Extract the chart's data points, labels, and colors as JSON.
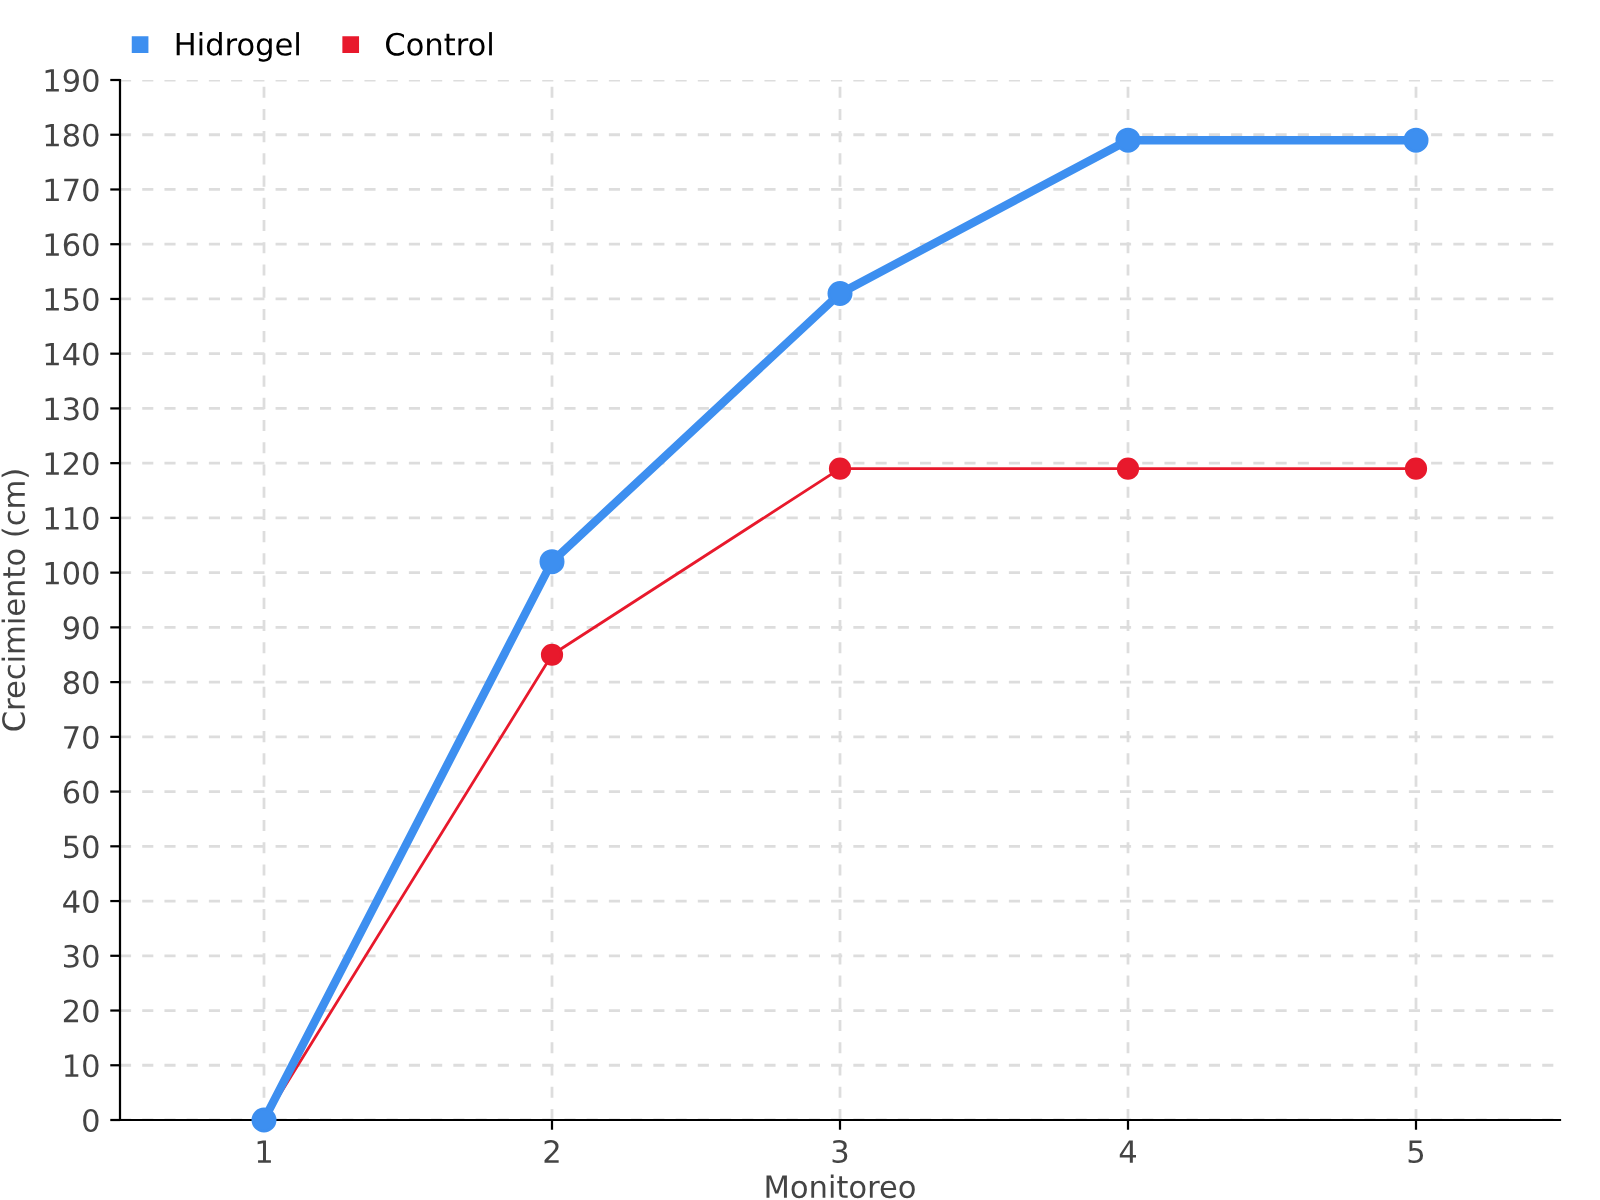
{
  "chart_data": {
    "type": "line",
    "xlabel": "Monitoreo",
    "ylabel": "Crecimiento (cm)",
    "categories": [
      "1",
      "2",
      "3",
      "4",
      "5"
    ],
    "series": [
      {
        "name": "Hidrogel",
        "color": "#3d8ff0",
        "values": [
          0,
          102,
          151,
          179,
          179
        ]
      },
      {
        "name": "Control",
        "color": "#e8192c",
        "values": [
          0,
          85,
          119,
          119,
          119
        ]
      }
    ],
    "ylim": [
      0,
      190
    ],
    "yticks": [
      0,
      10,
      20,
      30,
      40,
      50,
      60,
      70,
      80,
      90,
      100,
      110,
      120,
      130,
      140,
      150,
      160,
      170,
      180,
      190
    ],
    "grid": true,
    "legend": "top left",
    "marker": "circle",
    "line_style": "solid"
  }
}
